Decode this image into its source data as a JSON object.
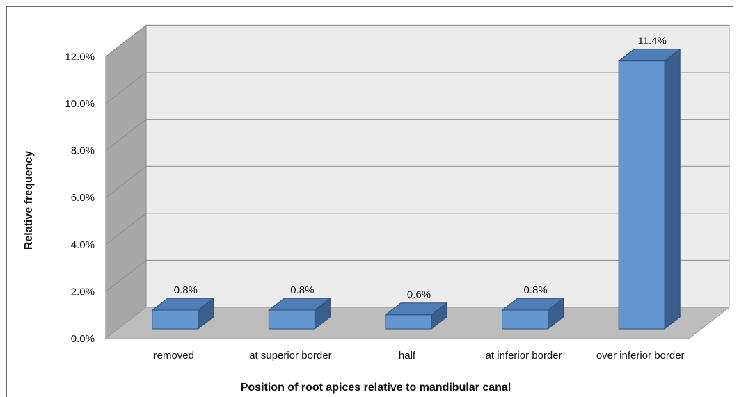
{
  "chart_data": {
    "type": "bar",
    "categories": [
      "removed",
      "at superior border",
      "half",
      "at inferior border",
      "over inferior border"
    ],
    "values": [
      0.8,
      0.8,
      0.6,
      0.8,
      11.4
    ],
    "value_labels": [
      "0.8%",
      "0.8%",
      "0.6%",
      "0.8%",
      "11.4%"
    ],
    "y_ticks": [
      "0.0%",
      "2.0%",
      "4.0%",
      "6.0%",
      "8.0%",
      "10.0%",
      "12.0%"
    ],
    "y_tick_values": [
      0,
      2,
      4,
      6,
      8,
      10,
      12
    ],
    "ylim": [
      0,
      12
    ],
    "xlabel": "Position of root apices relative to mandibular canal",
    "ylabel": "Relative frequency",
    "grid": true,
    "legend": "none",
    "colors": {
      "bar_front": "#6497cf",
      "bar_top": "#4f7db5",
      "bar_side": "#3a5f8e",
      "back_wall": "#ececec",
      "side_wall": "#a7a7a7",
      "floor": "#bdbdbd",
      "grid": "#8c8c8c"
    }
  }
}
